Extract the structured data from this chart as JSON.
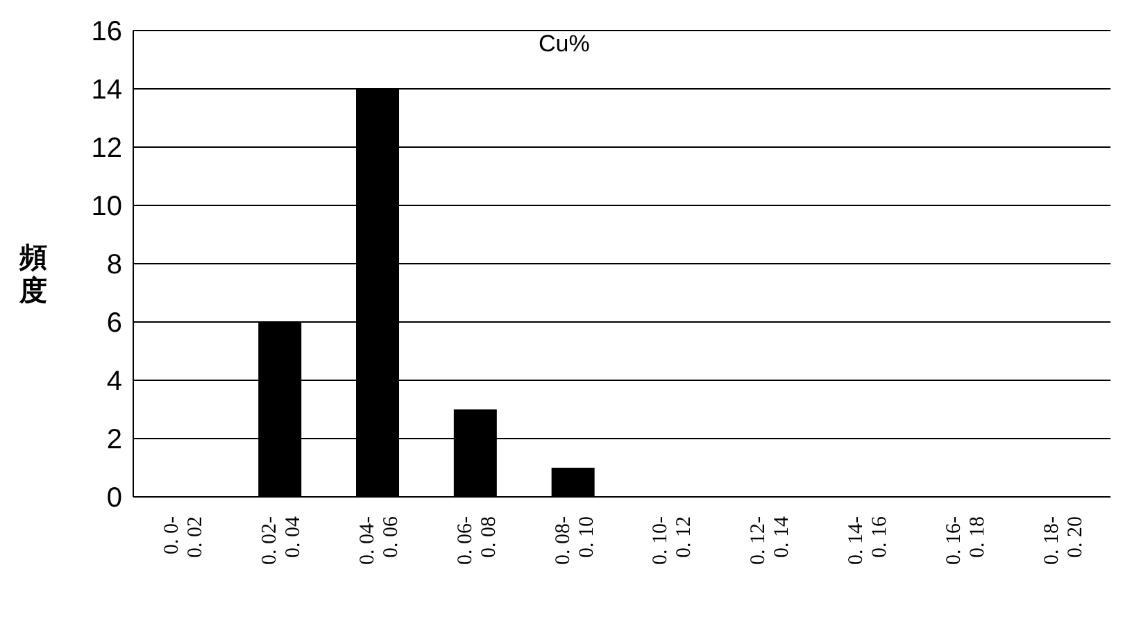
{
  "chart_data": {
    "type": "bar",
    "title": "Cu%",
    "ylabel": "頻度",
    "categories": [
      "0. 0-0. 02",
      "0. 02-0. 04",
      "0. 04-0. 06",
      "0. 06-0. 08",
      "0. 08-0. 10",
      "0. 10-0. 12",
      "0. 12-0. 14",
      "0. 14-0. 16",
      "0. 16-0. 18",
      "0. 18-0. 20"
    ],
    "values": [
      0,
      6,
      14,
      3,
      1,
      0,
      0,
      0,
      0,
      0
    ],
    "color": "#000000",
    "ylim": [
      0,
      16
    ],
    "yticks": [
      0,
      2,
      4,
      6,
      8,
      10,
      12,
      14,
      16
    ],
    "grid": "y"
  }
}
